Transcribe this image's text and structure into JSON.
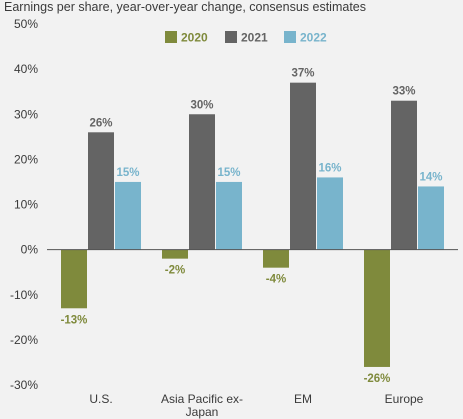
{
  "chart_data": {
    "type": "bar",
    "title": "Earnings per share, year-over-year change, consensus estimates",
    "categories": [
      "U.S.",
      "Asia Pacific ex-Japan",
      "EM",
      "Europe"
    ],
    "category_lines": [
      [
        "U.S."
      ],
      [
        "Asia Pacific ex-",
        "Japan"
      ],
      [
        "EM"
      ],
      [
        "Europe"
      ]
    ],
    "series": [
      {
        "name": "2020",
        "color": "#7f8a3c",
        "values": [
          -13,
          -2,
          -4,
          -26
        ]
      },
      {
        "name": "2021",
        "color": "#646464",
        "values": [
          26,
          30,
          37,
          33
        ]
      },
      {
        "name": "2022",
        "color": "#78b4cc",
        "values": [
          15,
          15,
          16,
          14
        ]
      }
    ],
    "data_labels": [
      [
        "-13%",
        "-2%",
        "-4%",
        "-26%"
      ],
      [
        "26%",
        "30%",
        "37%",
        "33%"
      ],
      [
        "15%",
        "15%",
        "16%",
        "14%"
      ]
    ],
    "yticks": [
      50,
      40,
      30,
      20,
      10,
      0,
      -10,
      -20,
      -30
    ],
    "ytick_labels": [
      "50%",
      "40%",
      "30%",
      "20%",
      "10%",
      "0%",
      "-10%",
      "-20%",
      "-30%"
    ],
    "ylim": [
      -30,
      50
    ],
    "xlabel": "",
    "ylabel": "",
    "legend_position": "top-center",
    "grid": false
  }
}
